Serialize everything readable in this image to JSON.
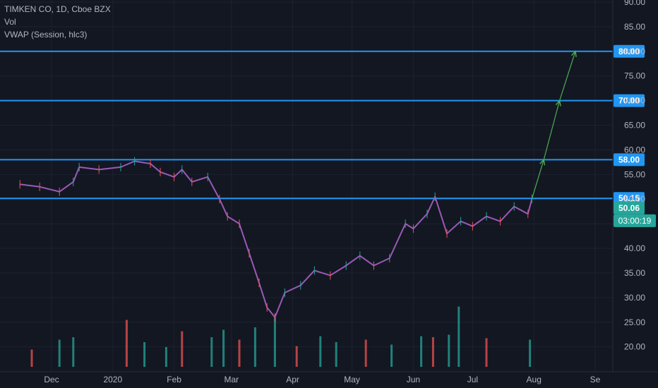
{
  "legend": {
    "symbol": "TIMKEN CO, 1D, Cboe BZX",
    "volume": "Vol",
    "vwap": "VWAP (Session, hlc3)"
  },
  "colors": {
    "background": "#131722",
    "grid": "#1e2230",
    "axis_text": "#b2b5be",
    "up": "#26a69a",
    "down": "#ef5350",
    "price_line": "#9b59b6",
    "level_line": "#2196f3",
    "projection": "#4caf50",
    "last_price": "#26a69a"
  },
  "chart_data": {
    "type": "line",
    "yaxis_ticks": [
      "90.00",
      "85.00",
      "80.00",
      "75.00",
      "70.00",
      "65.00",
      "60.00",
      "55.00",
      "50.00",
      "45.00",
      "40.00",
      "35.00",
      "30.00",
      "25.00",
      "20.00"
    ],
    "xaxis_ticks": [
      "Dec",
      "2020",
      "Feb",
      "Mar",
      "Apr",
      "May",
      "Jun",
      "Jul",
      "Aug",
      "Se"
    ],
    "ylim": [
      15.8,
      90.0
    ],
    "price_series": {
      "x": [
        "2019-11-15",
        "2019-11-25",
        "2019-12-05",
        "2019-12-12",
        "2019-12-15",
        "2019-12-25",
        "2020-01-05",
        "2020-01-12",
        "2020-01-20",
        "2020-01-25",
        "2020-02-01",
        "2020-02-05",
        "2020-02-10",
        "2020-02-18",
        "2020-02-24",
        "2020-02-28",
        "2020-03-05",
        "2020-03-10",
        "2020-03-15",
        "2020-03-19",
        "2020-03-23",
        "2020-03-28",
        "2020-04-05",
        "2020-04-12",
        "2020-04-20",
        "2020-04-28",
        "2020-05-05",
        "2020-05-12",
        "2020-05-20",
        "2020-05-28",
        "2020-06-01",
        "2020-06-08",
        "2020-06-12",
        "2020-06-18",
        "2020-06-25",
        "2020-07-01",
        "2020-07-08",
        "2020-07-15",
        "2020-07-22",
        "2020-07-29",
        "2020-07-31"
      ],
      "y": [
        53.0,
        52.5,
        51.5,
        53.5,
        56.5,
        56.0,
        56.5,
        57.7,
        57.2,
        55.5,
        54.5,
        56.0,
        53.5,
        54.5,
        50.0,
        46.5,
        45.0,
        39.0,
        33.0,
        28.0,
        26.0,
        31.0,
        32.5,
        35.5,
        34.5,
        36.5,
        38.5,
        36.5,
        38.0,
        45.0,
        44.0,
        47.0,
        50.5,
        43.0,
        45.5,
        44.5,
        46.5,
        45.5,
        48.5,
        47.0,
        50.06
      ]
    },
    "horizontal_levels": [
      {
        "label": "80.00",
        "value": 80.0
      },
      {
        "label": "70.00",
        "value": 70.0
      },
      {
        "label": "58.00",
        "value": 58.0
      },
      {
        "label": "50.15",
        "value": 50.15
      }
    ],
    "last_price": {
      "label": "50.06",
      "value": 50.06,
      "countdown": "03:00:19"
    },
    "projection": {
      "x": [
        "2020-07-31",
        "2020-08-06",
        "2020-08-14",
        "2020-08-22"
      ],
      "y": [
        50.06,
        58.0,
        70.0,
        80.0
      ]
    },
    "volume": {
      "x": [
        "2019-11-21",
        "2019-12-05",
        "2019-12-12",
        "2020-01-08",
        "2020-01-17",
        "2020-01-28",
        "2020-02-05",
        "2020-02-20",
        "2020-02-26",
        "2020-03-05",
        "2020-03-13",
        "2020-03-23",
        "2020-04-03",
        "2020-04-15",
        "2020-04-23",
        "2020-05-08",
        "2020-05-21",
        "2020-06-05",
        "2020-06-11",
        "2020-06-19",
        "2020-06-24",
        "2020-07-08",
        "2020-07-30"
      ],
      "heights": [
        0.35,
        0.55,
        0.6,
        0.95,
        0.5,
        0.4,
        0.72,
        0.6,
        0.75,
        0.55,
        0.8,
        1.0,
        0.42,
        0.62,
        0.5,
        0.55,
        0.45,
        0.62,
        0.6,
        0.65,
        1.22,
        0.58,
        0.55
      ]
    }
  }
}
